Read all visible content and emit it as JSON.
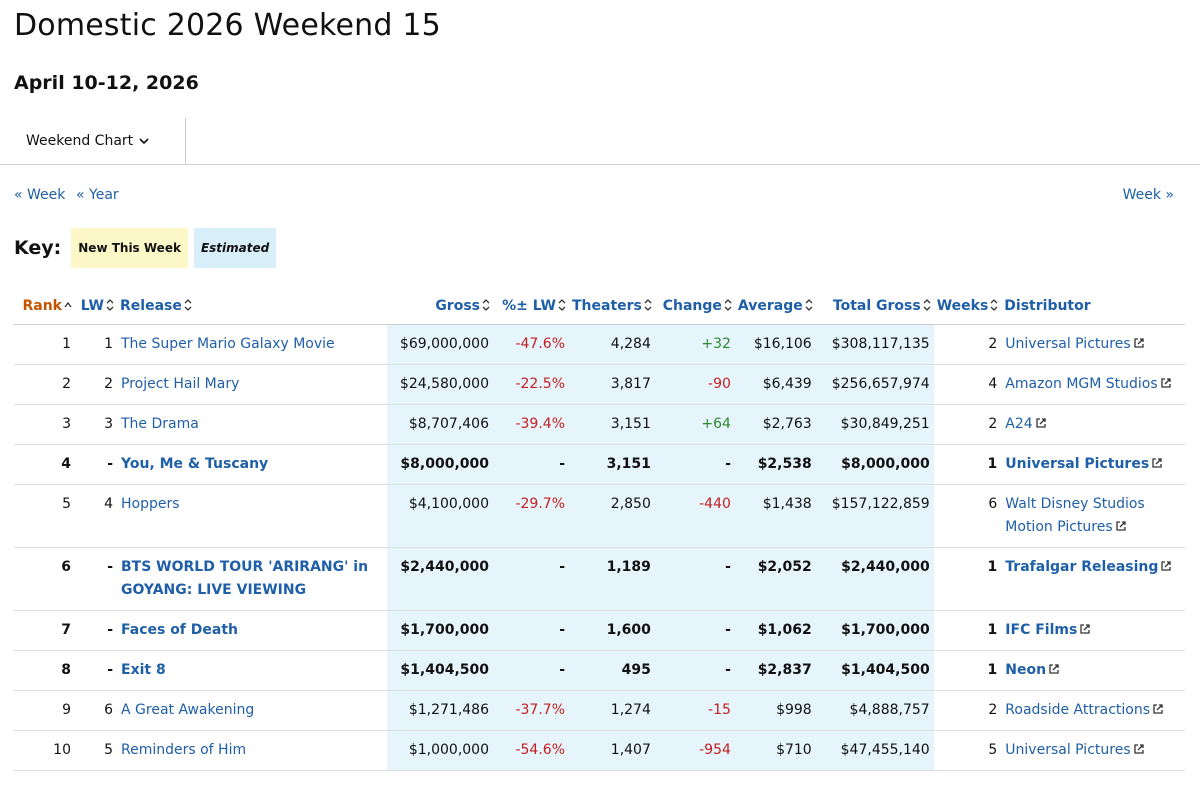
{
  "header": {
    "title": "Domestic 2026 Weekend 15",
    "date": "April 10-12, 2026"
  },
  "dropdown": "Weekend Chart",
  "nav": {
    "prev_week": "« Week",
    "prev_year": "« Year",
    "next_week": "Week »"
  },
  "key": {
    "label": "Key:",
    "new": "New This Week",
    "estimated": "Estimated"
  },
  "table": {
    "columns": [
      "Rank",
      "LW",
      "Release",
      "Gross",
      "%± LW",
      "Theaters",
      "Change",
      "Average",
      "Total Gross",
      "Weeks",
      "Distributor"
    ],
    "rows": [
      {
        "new": false,
        "cells": [
          "1",
          "1",
          "The Super Mario Galaxy Movie",
          "$69,000,000",
          "-47.6%",
          "4,284",
          "+32",
          "$16,106",
          "$308,117,135",
          "2",
          "Universal Pictures"
        ]
      },
      {
        "new": false,
        "cells": [
          "2",
          "2",
          "Project Hail Mary",
          "$24,580,000",
          "-22.5%",
          "3,817",
          "-90",
          "$6,439",
          "$256,657,974",
          "4",
          "Amazon MGM Studios"
        ]
      },
      {
        "new": false,
        "cells": [
          "3",
          "3",
          "The Drama",
          "$8,707,406",
          "-39.4%",
          "3,151",
          "+64",
          "$2,763",
          "$30,849,251",
          "2",
          "A24"
        ]
      },
      {
        "new": true,
        "cells": [
          "4",
          "-",
          "You, Me & Tuscany",
          "$8,000,000",
          "-",
          "3,151",
          "-",
          "$2,538",
          "$8,000,000",
          "1",
          "Universal Pictures"
        ]
      },
      {
        "new": false,
        "cells": [
          "5",
          "4",
          "Hoppers",
          "$4,100,000",
          "-29.7%",
          "2,850",
          "-440",
          "$1,438",
          "$157,122,859",
          "6",
          "Walt Disney Studios Motion Pictures"
        ]
      },
      {
        "new": true,
        "cells": [
          "6",
          "-",
          "BTS WORLD TOUR 'ARIRANG' in GOYANG: LIVE VIEWING",
          "$2,440,000",
          "-",
          "1,189",
          "-",
          "$2,052",
          "$2,440,000",
          "1",
          "Trafalgar Releasing"
        ]
      },
      {
        "new": true,
        "cells": [
          "7",
          "-",
          "Faces of Death",
          "$1,700,000",
          "-",
          "1,600",
          "-",
          "$1,062",
          "$1,700,000",
          "1",
          "IFC Films"
        ]
      },
      {
        "new": true,
        "cells": [
          "8",
          "-",
          "Exit 8",
          "$1,404,500",
          "-",
          "495",
          "-",
          "$2,837",
          "$1,404,500",
          "1",
          "Neon"
        ]
      },
      {
        "new": false,
        "cells": [
          "9",
          "6",
          "A Great Awakening",
          "$1,271,486",
          "-37.7%",
          "1,274",
          "-15",
          "$998",
          "$4,888,757",
          "2",
          "Roadside Attractions"
        ]
      },
      {
        "new": false,
        "cells": [
          "10",
          "5",
          "Reminders of Him",
          "$1,000,000",
          "-54.6%",
          "1,407",
          "-954",
          "$710",
          "$47,455,140",
          "5",
          "Universal Pictures"
        ]
      }
    ]
  }
}
